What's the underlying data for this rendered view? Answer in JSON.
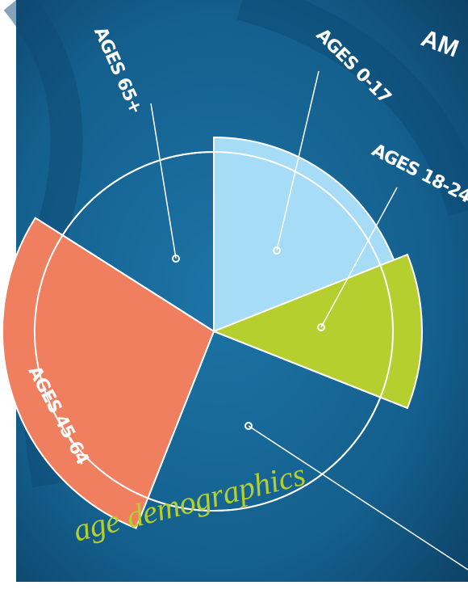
{
  "chart_data": {
    "type": "rose",
    "title": "age demographics",
    "brand": "AM",
    "categories": [
      "AGES 0-17",
      "AGES 18-24",
      null,
      "AGES 45-64",
      "AGES 65+"
    ],
    "values": [
      19,
      12,
      25,
      28,
      16
    ],
    "colors": [
      "#a6dcf6",
      "#b5cf2f",
      null,
      "#f07f60",
      null
    ]
  }
}
